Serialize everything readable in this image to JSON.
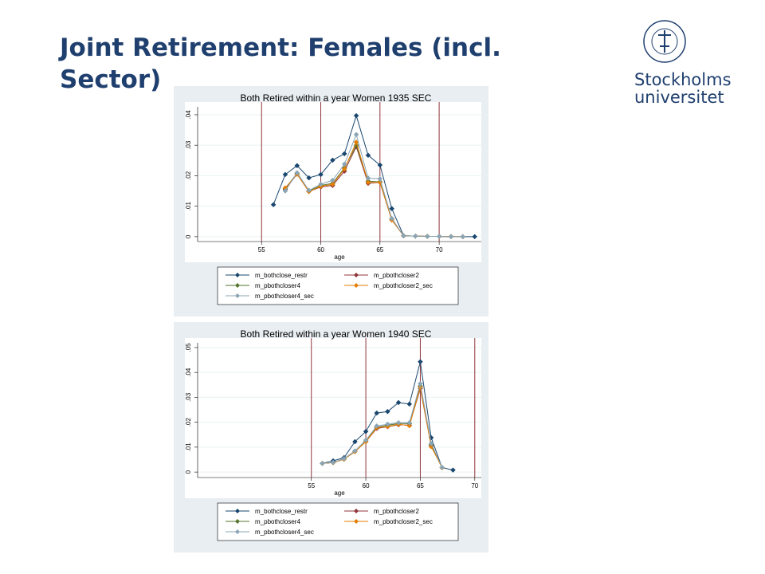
{
  "slide": {
    "title": "Joint Retirement: Females (incl. Sector)",
    "logo": [
      "Stockholms",
      "universitet"
    ]
  },
  "chart_data": [
    {
      "type": "line",
      "title": "Both Retired within a year Women 1935 SEC",
      "x_label": "age",
      "x": [
        56,
        57,
        58,
        59,
        60,
        61,
        62,
        63,
        64,
        65,
        66,
        67,
        68,
        69,
        70,
        71,
        72,
        73
      ],
      "xlim": [
        49.6,
        73.56
      ],
      "xticks": [
        55,
        60,
        65,
        70
      ],
      "xlines": [
        55,
        60,
        65,
        70
      ],
      "xline_color": "#90353b",
      "ylim": [
        -0.0016,
        0.0426
      ],
      "yticks": [
        0,
        {
          "value": 0.01,
          "label": ".01"
        },
        {
          "value": 0.02,
          "label": ".02"
        },
        {
          "value": 0.03,
          "label": ".03"
        },
        {
          "value": 0.04,
          "label": ".04"
        }
      ],
      "grid": true,
      "series": [
        {
          "name": "m_bothclose_restr",
          "color": "#1a476f",
          "values": [
            0.0105,
            0.0204,
            0.0233,
            0.0193,
            0.0204,
            0.0251,
            0.0272,
            0.0397,
            0.0267,
            0.0235,
            0.0092,
            0.0003,
            0.0002,
            0.0001,
            0.0001,
            0,
            0,
            0
          ]
        },
        {
          "name": "m_pbothcloser2",
          "color": "#90353b",
          "values": [
            null,
            0.0155,
            0.0205,
            0.0148,
            0.0163,
            0.0168,
            0.0215,
            0.0295,
            0.0175,
            0.0178,
            0.0055,
            0.0003,
            0.0002,
            0.0001,
            0.0001,
            0,
            0,
            null
          ]
        },
        {
          "name": "m_pbothcloser4",
          "color": "#55752f",
          "values": [
            null,
            0.0158,
            0.0208,
            0.015,
            0.0168,
            0.0175,
            0.0225,
            0.03,
            0.0182,
            0.018,
            0.0058,
            0.0003,
            0.0002,
            0.0001,
            0.0001,
            0,
            0,
            null
          ]
        },
        {
          "name": "m_pbothcloser2_sec",
          "color": "#e37e00",
          "values": [
            null,
            0.016,
            0.0205,
            0.0148,
            0.0165,
            0.0172,
            0.0222,
            0.031,
            0.0178,
            0.0178,
            0.0055,
            0.0003,
            0.0002,
            0.0001,
            0.0001,
            0,
            0,
            null
          ]
        },
        {
          "name": "m_pbothcloser4_sec",
          "color": "#8aa5b5",
          "values": [
            null,
            0.015,
            0.021,
            0.0152,
            0.0172,
            0.0185,
            0.0238,
            0.0335,
            0.0192,
            0.019,
            0.006,
            0.0003,
            0.0002,
            0.0001,
            0.0001,
            0,
            0,
            null
          ]
        }
      ]
    },
    {
      "type": "line",
      "title": "Both Retired within a year Women 1940 SEC",
      "x_label": "age",
      "x": [
        56,
        57,
        58,
        59,
        60,
        61,
        62,
        63,
        64,
        65,
        66,
        67,
        68
      ],
      "xlim": [
        44.56,
        70.6
      ],
      "xticks": [
        55,
        60,
        65,
        70
      ],
      "xlines": [
        55,
        60,
        65,
        70
      ],
      "xline_color": "#90353b",
      "ylim": [
        -0.0022,
        0.0519
      ],
      "yticks": [
        0,
        {
          "value": 0.01,
          "label": ".01"
        },
        {
          "value": 0.02,
          "label": ".02"
        },
        {
          "value": 0.03,
          "label": ".03"
        },
        {
          "value": 0.04,
          "label": ".04"
        },
        {
          "value": 0.05,
          "label": ".05"
        }
      ],
      "grid": true,
      "series": [
        {
          "name": "m_bothclose_restr",
          "color": "#1a476f",
          "values": [
            0.0035,
            0.0045,
            0.0058,
            0.0122,
            0.0163,
            0.0237,
            0.0243,
            0.0279,
            0.0273,
            0.0443,
            0.0138,
            0.0018,
            0.0008
          ]
        },
        {
          "name": "m_pbothcloser2",
          "color": "#90353b",
          "values": [
            0.0035,
            0.0038,
            0.0052,
            0.0082,
            0.0122,
            0.0175,
            0.0182,
            0.019,
            0.0188,
            0.0335,
            0.0105,
            0.0018,
            null
          ]
        },
        {
          "name": "m_pbothcloser4",
          "color": "#55752f",
          "values": [
            0.0035,
            0.0038,
            0.0052,
            0.0082,
            0.0124,
            0.018,
            0.0188,
            0.0195,
            0.0195,
            0.0345,
            0.011,
            0.0018,
            null
          ]
        },
        {
          "name": "m_pbothcloser2_sec",
          "color": "#e37e00",
          "values": [
            0.0035,
            0.0038,
            0.0052,
            0.0082,
            0.0122,
            0.0178,
            0.0183,
            0.0192,
            0.0186,
            0.034,
            0.0102,
            0.0018,
            null
          ]
        },
        {
          "name": "m_pbothcloser4_sec",
          "color": "#8aa5b5",
          "values": [
            0.0035,
            0.0039,
            0.0054,
            0.0085,
            0.0128,
            0.0185,
            0.0192,
            0.0198,
            0.0198,
            0.0355,
            0.0115,
            0.0019,
            null
          ]
        }
      ]
    }
  ]
}
